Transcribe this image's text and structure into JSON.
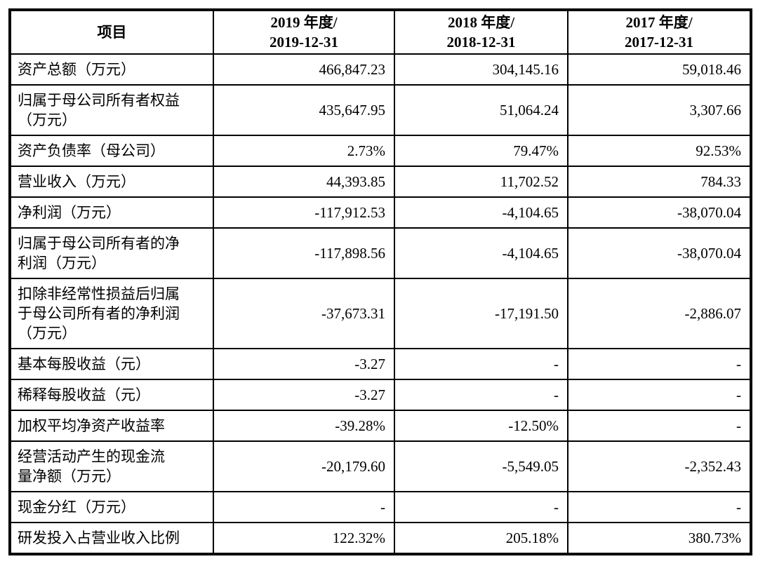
{
  "page": {
    "background_color": "#ffffff",
    "border_color": "#000000",
    "text_color": "#000000"
  },
  "table": {
    "header": {
      "item": "项目",
      "col_2019": "2019 年度/\n2019-12-31",
      "col_2018": "2018 年度/\n2018-12-31",
      "col_2017": "2017 年度/\n2017-12-31"
    },
    "rows": [
      {
        "label": "资产总额（万元）",
        "y2019": "466,847.23",
        "y2018": "304,145.16",
        "y2017": "59,018.46"
      },
      {
        "label": "归属于母公司所有者权益\n（万元）",
        "y2019": "435,647.95",
        "y2018": "51,064.24",
        "y2017": "3,307.66"
      },
      {
        "label": "资产负债率（母公司）",
        "y2019": "2.73%",
        "y2018": "79.47%",
        "y2017": "92.53%"
      },
      {
        "label": "营业收入（万元）",
        "y2019": "44,393.85",
        "y2018": "11,702.52",
        "y2017": "784.33"
      },
      {
        "label": "净利润（万元）",
        "y2019": "-117,912.53",
        "y2018": "-4,104.65",
        "y2017": "-38,070.04"
      },
      {
        "label": "归属于母公司所有者的净\n利润（万元）",
        "y2019": "-117,898.56",
        "y2018": "-4,104.65",
        "y2017": "-38,070.04"
      },
      {
        "label": "扣除非经常性损益后归属\n于母公司所有者的净利润\n（万元）",
        "y2019": "-37,673.31",
        "y2018": "-17,191.50",
        "y2017": "-2,886.07"
      },
      {
        "label": "基本每股收益（元）",
        "y2019": "-3.27",
        "y2018": "-",
        "y2017": "-"
      },
      {
        "label": "稀释每股收益（元）",
        "y2019": "-3.27",
        "y2018": "-",
        "y2017": "-"
      },
      {
        "label": "加权平均净资产收益率",
        "y2019": "-39.28%",
        "y2018": "-12.50%",
        "y2017": "-"
      },
      {
        "label": "经营活动产生的现金流\n量净额（万元）",
        "y2019": "-20,179.60",
        "y2018": "-5,549.05",
        "y2017": "-2,352.43"
      },
      {
        "label": "现金分红（万元）",
        "y2019": "-",
        "y2018": "-",
        "y2017": "-"
      },
      {
        "label": "研发投入占营业收入比例",
        "y2019": "122.32%",
        "y2018": "205.18%",
        "y2017": "380.73%"
      }
    ]
  }
}
